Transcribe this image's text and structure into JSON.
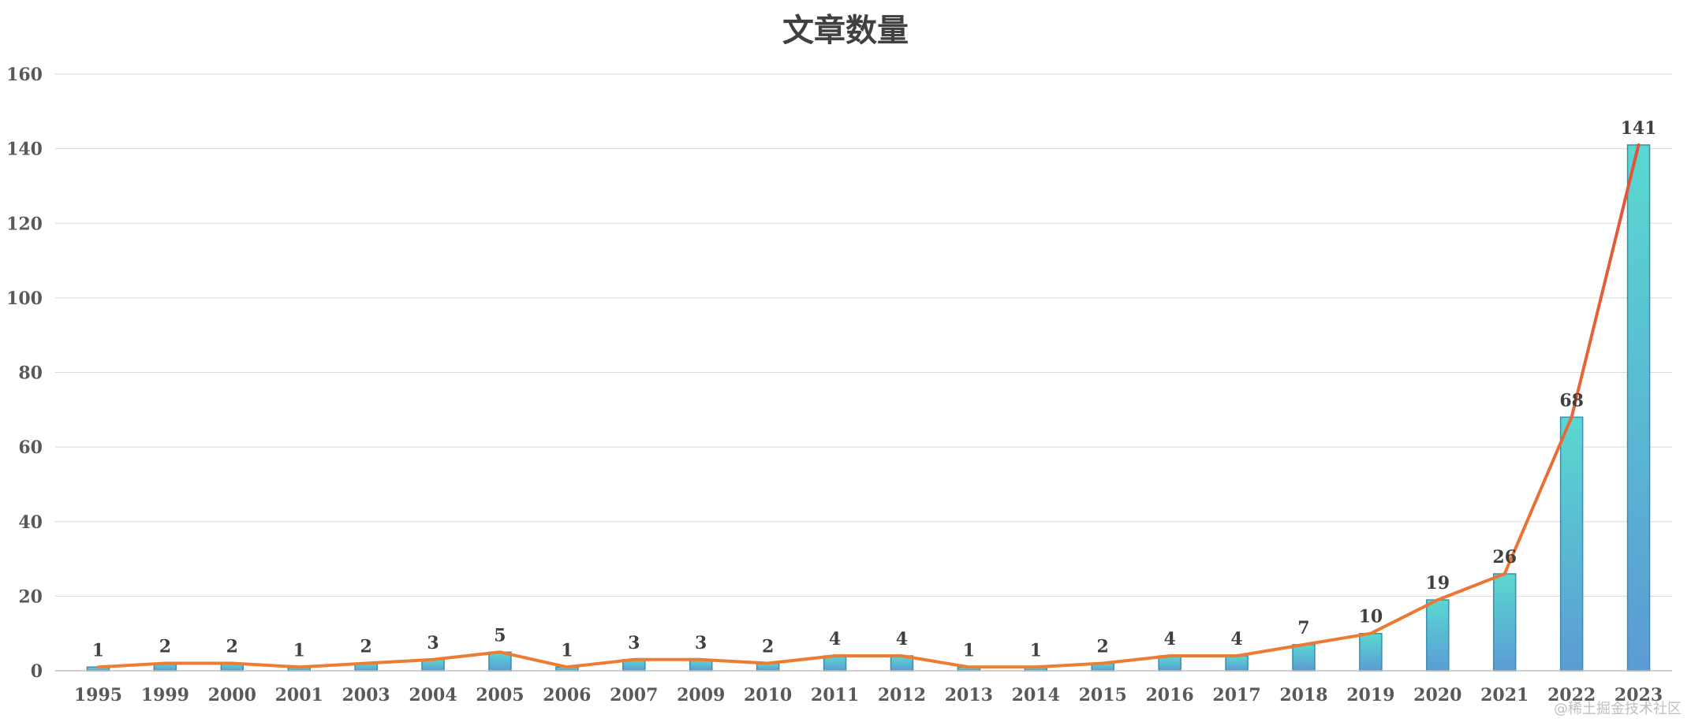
{
  "chart_data": {
    "type": "bar",
    "title": "文章数量",
    "xlabel": "",
    "ylabel": "",
    "categories": [
      "1995",
      "1999",
      "2000",
      "2001",
      "2003",
      "2004",
      "2005",
      "2006",
      "2007",
      "2009",
      "2010",
      "2011",
      "2012",
      "2013",
      "2014",
      "2015",
      "2016",
      "2017",
      "2018",
      "2019",
      "2020",
      "2021",
      "2022",
      "2023"
    ],
    "series": [
      {
        "type": "bar",
        "values": [
          1,
          2,
          2,
          1,
          2,
          3,
          5,
          1,
          3,
          3,
          2,
          4,
          4,
          1,
          1,
          2,
          4,
          4,
          7,
          10,
          19,
          26,
          68,
          141
        ]
      },
      {
        "type": "line",
        "values": [
          1,
          2,
          2,
          1,
          2,
          3,
          5,
          1,
          3,
          3,
          2,
          4,
          4,
          1,
          1,
          2,
          4,
          4,
          7,
          10,
          19,
          26,
          68,
          141
        ]
      }
    ],
    "ylim": [
      0,
      160
    ],
    "yticks": [
      0,
      20,
      40,
      60,
      80,
      100,
      120,
      140,
      160
    ],
    "grid": true,
    "legend": "none",
    "data_labels": true
  },
  "colors": {
    "bar_top": "#5ad8d0",
    "bar_bottom": "#5b9bd5",
    "bar_stroke": "#3a8fb0",
    "line": "#ed7d31",
    "line_peak": "#e0533a",
    "grid": "#d9d9d9",
    "axis": "#bfbfbf"
  },
  "watermark": "@稀土掘金技术社区"
}
